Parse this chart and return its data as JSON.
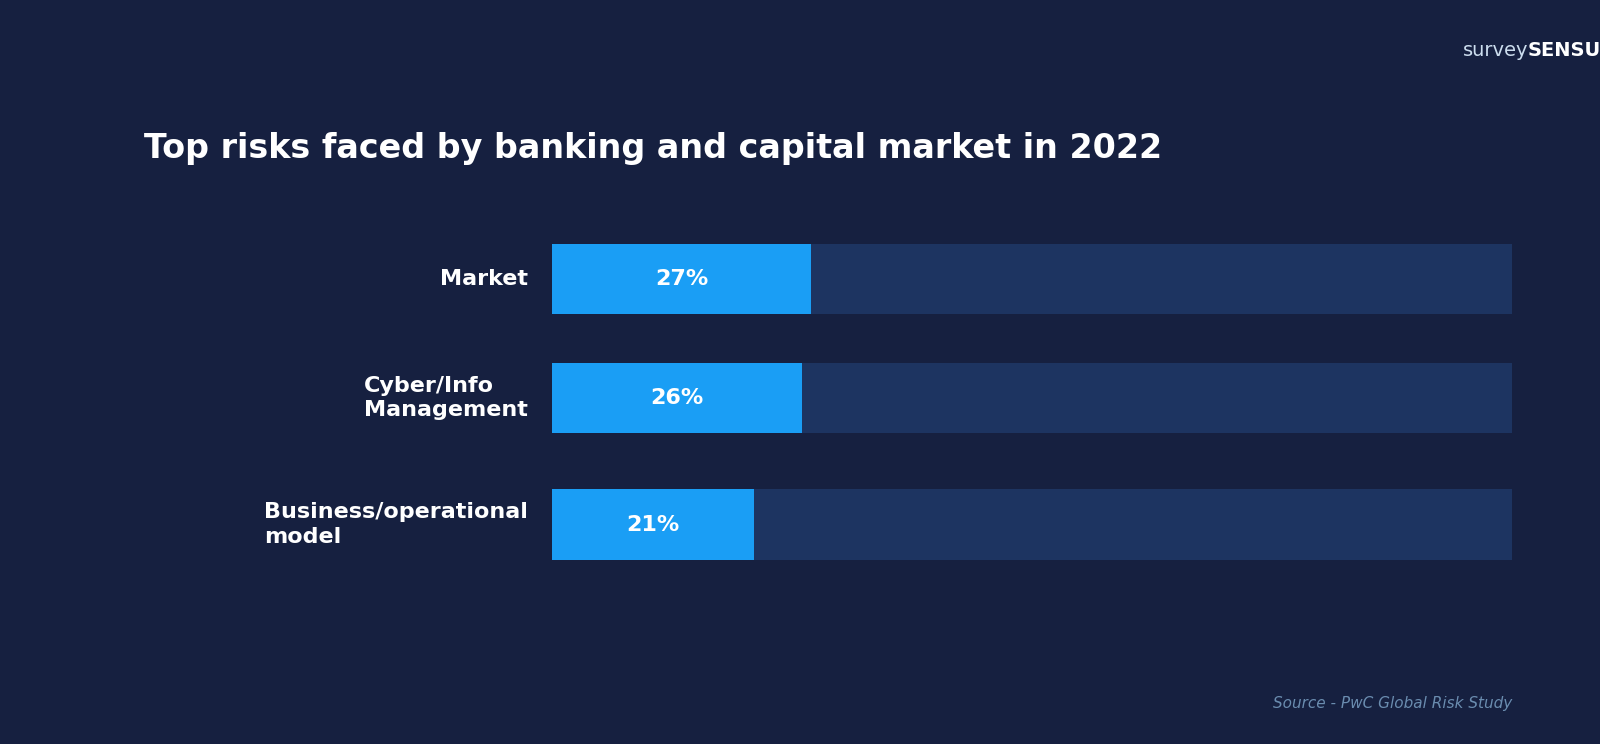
{
  "title": "Top risks faced by banking and capital market in 2022",
  "categories": [
    "Market",
    "Cyber/Info\nManagement",
    "Business/operational\nmodel"
  ],
  "values": [
    27,
    26,
    21
  ],
  "bar_bg_color": "#1d3461",
  "bar_fg_color": "#1a9ef5",
  "text_color": "#ffffff",
  "bg_color": "#162040",
  "title_fontsize": 24,
  "label_fontsize": 16,
  "value_fontsize": 16,
  "source_text": "Source - PwC Global Risk Study",
  "source_color": "#6a8caf",
  "logo_survey": "survey",
  "logo_sensum": "SENSUM"
}
